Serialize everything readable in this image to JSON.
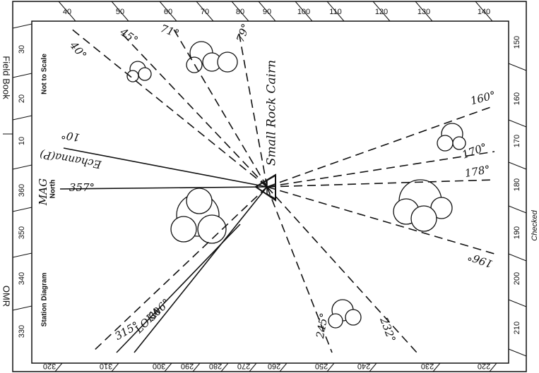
{
  "margin_text": [
    "Field Book",
    "OMR"
  ],
  "scale_top": [
    "40",
    "50",
    "60",
    "70",
    "80",
    "90",
    "100",
    "110",
    "120",
    "130",
    "140"
  ],
  "scale_right": [
    "150",
    "160",
    "170",
    "180",
    "190",
    "200",
    "210"
  ],
  "scale_bottom": [
    "320",
    "310",
    "300",
    "290",
    "280",
    "270",
    "260",
    "250",
    "240",
    "230",
    "220"
  ],
  "scale_left": [
    "330",
    "340",
    "350",
    "360",
    "10",
    "20",
    "30"
  ],
  "printed_labels": {
    "not_to_scale": "Not to Scale",
    "station_diagram": "Station Diagram",
    "mag": "MAG",
    "north": "North",
    "checked": "Checked"
  },
  "station": "Small Rock Cairn",
  "bearings": [
    "40°",
    "45°",
    "71°",
    "79°",
    "160°",
    "170°",
    "178°",
    "196°",
    "232°",
    "245°",
    "306°",
    "315°",
    "357°",
    "10°"
  ],
  "notes": [
    "Echanna(P)",
    "LOKA"
  ]
}
